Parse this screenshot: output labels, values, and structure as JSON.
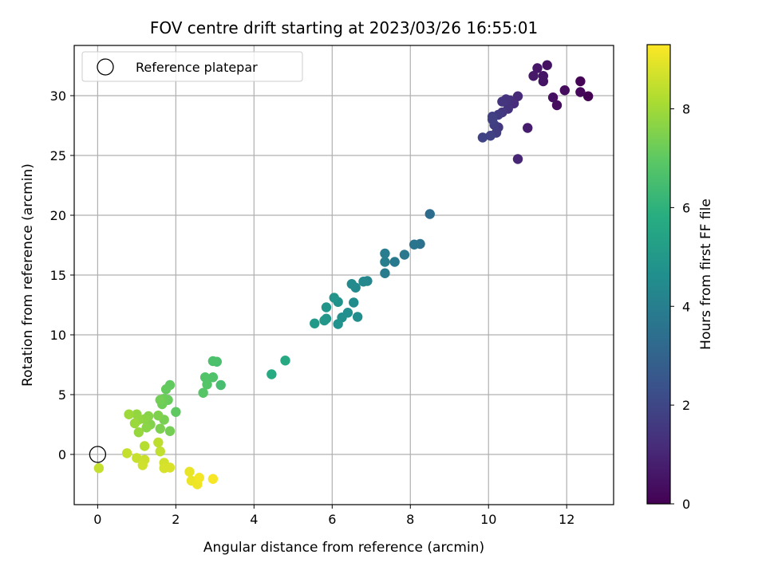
{
  "chart_data": {
    "type": "scatter",
    "title": "FOV centre drift starting at 2023/03/26 16:55:01",
    "xlabel": "Angular distance from reference (arcmin)",
    "ylabel": "Rotation from reference (arcmin)",
    "xlim": [
      -0.6,
      13.2
    ],
    "ylim": [
      -4.2,
      34.2
    ],
    "xticks": [
      0,
      2,
      4,
      6,
      8,
      10,
      12
    ],
    "yticks": [
      0,
      5,
      10,
      15,
      20,
      25,
      30
    ],
    "grid": true,
    "legend": {
      "placement": "top-left",
      "entries": [
        "Reference platepar"
      ]
    },
    "reference_point": {
      "x": 0,
      "y": 0
    },
    "colorbar": {
      "label": "Hours from first FF file",
      "range": [
        0,
        9.3
      ],
      "ticks": [
        0,
        2,
        4,
        6,
        8
      ],
      "colormap": "viridis"
    },
    "series": [
      {
        "points": [
          [
            12.55,
            29.95,
            0.0
          ],
          [
            12.35,
            31.2,
            0.1
          ],
          [
            12.35,
            30.3,
            0.2
          ],
          [
            11.95,
            30.45,
            0.3
          ],
          [
            11.75,
            29.2,
            0.35
          ],
          [
            11.65,
            29.85,
            0.4
          ],
          [
            11.5,
            32.55,
            0.45
          ],
          [
            11.4,
            31.2,
            0.5
          ],
          [
            11.4,
            31.65,
            0.55
          ],
          [
            11.25,
            32.3,
            0.6
          ],
          [
            11.15,
            31.65,
            0.65
          ],
          [
            11.0,
            27.3,
            0.75
          ],
          [
            10.75,
            24.7,
            1.0
          ],
          [
            10.75,
            29.95,
            1.1
          ],
          [
            10.65,
            29.35,
            1.2
          ],
          [
            10.55,
            29.6,
            1.3
          ],
          [
            10.5,
            28.9,
            1.35
          ],
          [
            10.45,
            29.7,
            1.4
          ],
          [
            10.35,
            29.5,
            1.45
          ],
          [
            10.35,
            28.6,
            1.5
          ],
          [
            10.25,
            27.35,
            1.55
          ],
          [
            10.25,
            28.4,
            1.6
          ],
          [
            10.2,
            26.9,
            1.65
          ],
          [
            10.15,
            27.55,
            1.7
          ],
          [
            10.1,
            28.25,
            1.75
          ],
          [
            10.1,
            28.0,
            1.8
          ],
          [
            10.05,
            26.65,
            1.85
          ],
          [
            9.85,
            26.5,
            1.9
          ],
          [
            8.5,
            20.1,
            3.3
          ],
          [
            8.25,
            17.6,
            3.5
          ],
          [
            8.1,
            17.55,
            3.6
          ],
          [
            7.85,
            16.7,
            3.7
          ],
          [
            7.6,
            16.1,
            3.8
          ],
          [
            7.35,
            15.15,
            3.9
          ],
          [
            7.35,
            16.8,
            3.95
          ],
          [
            7.35,
            16.1,
            4.0
          ],
          [
            6.9,
            14.5,
            4.3
          ],
          [
            6.8,
            14.45,
            4.35
          ],
          [
            6.6,
            13.95,
            4.4
          ],
          [
            6.5,
            14.25,
            4.45
          ],
          [
            6.55,
            12.7,
            4.5
          ],
          [
            6.65,
            11.5,
            4.55
          ],
          [
            6.4,
            11.85,
            4.6
          ],
          [
            6.25,
            11.45,
            4.65
          ],
          [
            6.15,
            12.75,
            4.7
          ],
          [
            6.15,
            10.9,
            4.75
          ],
          [
            6.05,
            13.1,
            4.8
          ],
          [
            5.85,
            12.3,
            4.85
          ],
          [
            5.85,
            11.35,
            4.9
          ],
          [
            5.8,
            11.2,
            4.95
          ],
          [
            5.55,
            10.95,
            5.0
          ],
          [
            4.8,
            7.85,
            5.6
          ],
          [
            4.45,
            6.7,
            5.7
          ],
          [
            3.15,
            5.8,
            6.5
          ],
          [
            3.05,
            7.75,
            6.6
          ],
          [
            2.95,
            7.8,
            6.65
          ],
          [
            2.95,
            6.45,
            6.7
          ],
          [
            2.75,
            6.45,
            6.75
          ],
          [
            2.8,
            5.85,
            6.8
          ],
          [
            2.7,
            5.15,
            6.85
          ],
          [
            2.0,
            3.55,
            7.0
          ],
          [
            1.85,
            5.8,
            7.05
          ],
          [
            1.75,
            5.45,
            7.1
          ],
          [
            1.8,
            4.55,
            7.15
          ],
          [
            1.7,
            4.65,
            7.2
          ],
          [
            1.65,
            4.2,
            7.25
          ],
          [
            1.6,
            4.55,
            7.3
          ],
          [
            1.85,
            1.95,
            7.35
          ],
          [
            1.7,
            2.9,
            7.4
          ],
          [
            1.6,
            2.15,
            7.45
          ],
          [
            1.55,
            3.25,
            7.5
          ],
          [
            1.35,
            2.5,
            7.55
          ],
          [
            1.3,
            3.2,
            7.6
          ],
          [
            1.25,
            2.25,
            7.65
          ],
          [
            1.2,
            2.95,
            7.7
          ],
          [
            1.05,
            2.9,
            7.75
          ],
          [
            1.0,
            3.35,
            7.8
          ],
          [
            1.05,
            1.85,
            7.85
          ],
          [
            0.95,
            2.6,
            7.9
          ],
          [
            0.8,
            3.35,
            7.95
          ],
          [
            1.2,
            0.7,
            8.3
          ],
          [
            1.55,
            1.0,
            8.4
          ],
          [
            1.6,
            0.25,
            8.45
          ],
          [
            0.75,
            0.1,
            8.5
          ],
          [
            1.0,
            -0.3,
            8.55
          ],
          [
            1.2,
            -0.45,
            8.6
          ],
          [
            1.15,
            -0.9,
            8.65
          ],
          [
            1.7,
            -0.7,
            8.7
          ],
          [
            1.7,
            -1.15,
            8.75
          ],
          [
            1.85,
            -1.1,
            8.8
          ],
          [
            0.03,
            -1.15,
            8.5
          ],
          [
            2.35,
            -1.45,
            9.0
          ],
          [
            2.4,
            -2.2,
            9.05
          ],
          [
            2.55,
            -2.5,
            9.1
          ],
          [
            2.6,
            -1.95,
            9.15
          ],
          [
            2.95,
            -2.05,
            9.2
          ]
        ]
      }
    ]
  }
}
